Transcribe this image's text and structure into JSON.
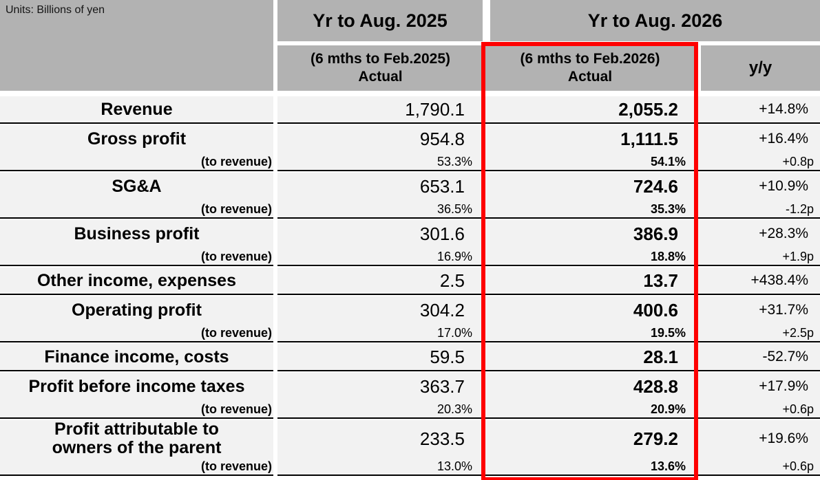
{
  "units_label": "Units: Billions of yen",
  "header": {
    "fy_current": "Yr to Aug. 2025",
    "fy_next": "Yr to Aug. 2026",
    "sub_current_line1": "(6 mths to Feb.2025)",
    "sub_current_line2": "Actual",
    "sub_next_line1": "(6 mths to Feb.2026)",
    "sub_next_line2": "Actual",
    "yoy": "y/y"
  },
  "colors": {
    "header_bg": "#b2b2b2",
    "row_bg": "#f2f2f2",
    "highlight_border": "#fe0000",
    "row_line": "#000000"
  },
  "rows": [
    {
      "label": "Revenue",
      "actual_2025": "1,790.1",
      "actual_2026": "2,055.2",
      "yoy": "+14.8%"
    },
    {
      "label": "Gross profit",
      "pct_label": "(to revenue)",
      "actual_2025": "954.8",
      "actual_2026": "1,111.5",
      "yoy": "+16.4%",
      "pct_2025": "53.3%",
      "pct_2026": "54.1%",
      "pct_yoy": "+0.8p"
    },
    {
      "label": "SG&A",
      "pct_label": "(to revenue)",
      "actual_2025": "653.1",
      "actual_2026": "724.6",
      "yoy": "+10.9%",
      "pct_2025": "36.5%",
      "pct_2026": "35.3%",
      "pct_yoy": "-1.2p"
    },
    {
      "label": "Business profit",
      "pct_label": "(to revenue)",
      "actual_2025": "301.6",
      "actual_2026": "386.9",
      "yoy": "+28.3%",
      "pct_2025": "16.9%",
      "pct_2026": "18.8%",
      "pct_yoy": "+1.9p"
    },
    {
      "label": "Other income, expenses",
      "actual_2025": "2.5",
      "actual_2026": "13.7",
      "yoy": "+438.4%"
    },
    {
      "label": "Operating profit",
      "pct_label": "(to revenue)",
      "actual_2025": "304.2",
      "actual_2026": "400.6",
      "yoy": "+31.7%",
      "pct_2025": "17.0%",
      "pct_2026": "19.5%",
      "pct_yoy": "+2.5p"
    },
    {
      "label": "Finance income, costs",
      "actual_2025": "59.5",
      "actual_2026": "28.1",
      "yoy": "-52.7%"
    },
    {
      "label": "Profit before income taxes",
      "pct_label": "(to revenue)",
      "actual_2025": "363.7",
      "actual_2026": "428.8",
      "yoy": "+17.9%",
      "pct_2025": "20.3%",
      "pct_2026": "20.9%",
      "pct_yoy": "+0.6p"
    },
    {
      "label": "Profit attributable to",
      "label_line2": "owners of the parent",
      "pct_label": "(to revenue)",
      "actual_2025": "233.5",
      "actual_2026": "279.2",
      "yoy": "+19.6%",
      "pct_2025": "13.0%",
      "pct_2026": "13.6%",
      "pct_yoy": "+0.6p"
    }
  ]
}
